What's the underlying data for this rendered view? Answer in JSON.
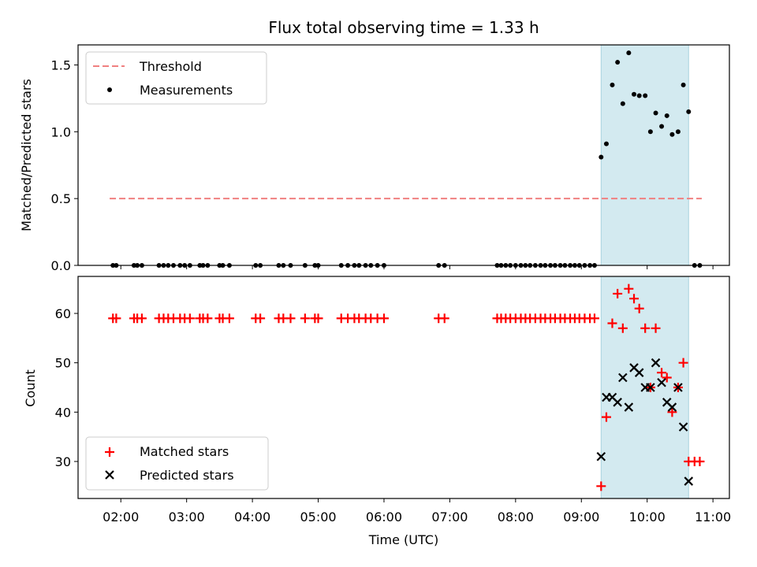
{
  "chart_data": [
    {
      "type": "scatter",
      "title": "Flux total observing time = 1.33 h",
      "ylabel": "Matched/Predicted stars",
      "xlabel": "",
      "xlim_hours": [
        1.35,
        11.25
      ],
      "ylim": [
        0,
        1.65
      ],
      "yticks": [
        0.0,
        0.5,
        1.0,
        1.5
      ],
      "ytick_labels": [
        "0.0",
        "0.5",
        "1.0",
        "1.5"
      ],
      "shaded_region_hours": [
        9.3,
        10.63
      ],
      "legend": {
        "position": "top-left",
        "entries": [
          "Threshold",
          "Measurements"
        ]
      },
      "threshold": {
        "name": "Threshold",
        "value": 0.5,
        "x_range_hours": [
          1.83,
          10.83
        ],
        "color": "#f08080"
      },
      "measurements": {
        "name": "Measurements",
        "color": "#000000",
        "x_hours": [
          1.88,
          1.93,
          2.2,
          2.25,
          2.32,
          2.58,
          2.65,
          2.72,
          2.8,
          2.9,
          2.97,
          3.05,
          3.2,
          3.25,
          3.32,
          3.5,
          3.55,
          3.65,
          4.05,
          4.12,
          4.4,
          4.47,
          4.58,
          4.8,
          4.95,
          5.0,
          5.35,
          5.45,
          5.55,
          5.62,
          5.72,
          5.8,
          5.9,
          6.0,
          6.83,
          6.92,
          7.72,
          7.78,
          7.85,
          7.92,
          8.0,
          8.08,
          8.15,
          8.22,
          8.3,
          8.38,
          8.45,
          8.53,
          8.6,
          8.68,
          8.75,
          8.83,
          8.9,
          8.97,
          9.05,
          9.13,
          9.2,
          9.3,
          9.38,
          9.47,
          9.55,
          9.63,
          9.72,
          9.8,
          9.88,
          9.97,
          10.05,
          10.13,
          10.22,
          10.3,
          10.38,
          10.47,
          10.55,
          10.63,
          10.72,
          10.8
        ],
        "y": [
          0,
          0,
          0,
          0,
          0,
          0,
          0,
          0,
          0,
          0,
          0,
          0,
          0,
          0,
          0,
          0,
          0,
          0,
          0,
          0,
          0,
          0,
          0,
          0,
          0,
          0,
          0,
          0,
          0,
          0,
          0,
          0,
          0,
          0,
          0,
          0,
          0,
          0,
          0,
          0,
          0,
          0,
          0,
          0,
          0,
          0,
          0,
          0,
          0,
          0,
          0,
          0,
          0,
          0,
          0,
          0,
          0,
          0.81,
          0.91,
          1.35,
          1.52,
          1.21,
          1.59,
          1.28,
          1.27,
          1.27,
          1.0,
          1.14,
          1.04,
          1.12,
          0.98,
          1.0,
          1.35,
          1.15,
          0,
          0
        ]
      }
    },
    {
      "type": "scatter",
      "title": "",
      "ylabel": "Count",
      "xlabel": "Time (UTC)",
      "xlim_hours": [
        1.35,
        11.25
      ],
      "ylim": [
        22.5,
        67.5
      ],
      "yticks": [
        30,
        40,
        50,
        60
      ],
      "ytick_labels": [
        "30",
        "40",
        "50",
        "60"
      ],
      "xticks_hours": [
        2,
        3,
        4,
        5,
        6,
        7,
        8,
        9,
        10,
        11
      ],
      "xtick_labels": [
        "02:00",
        "03:00",
        "04:00",
        "05:00",
        "06:00",
        "07:00",
        "08:00",
        "09:00",
        "10:00",
        "11:00"
      ],
      "shaded_region_hours": [
        9.3,
        10.63
      ],
      "legend": {
        "position": "bottom-left",
        "entries": [
          "Matched stars",
          "Predicted stars"
        ]
      },
      "series": [
        {
          "name": "Matched stars",
          "marker": "+",
          "color": "#ff0000",
          "x_hours": [
            1.88,
            1.93,
            2.2,
            2.25,
            2.32,
            2.58,
            2.65,
            2.72,
            2.8,
            2.9,
            2.97,
            3.05,
            3.2,
            3.25,
            3.32,
            3.5,
            3.55,
            3.65,
            4.05,
            4.12,
            4.4,
            4.47,
            4.58,
            4.8,
            4.95,
            5.0,
            5.35,
            5.45,
            5.55,
            5.62,
            5.72,
            5.8,
            5.9,
            6.0,
            6.83,
            6.92,
            7.72,
            7.78,
            7.85,
            7.92,
            8.0,
            8.08,
            8.15,
            8.22,
            8.3,
            8.38,
            8.45,
            8.53,
            8.6,
            8.68,
            8.75,
            8.83,
            8.9,
            8.97,
            9.05,
            9.13,
            9.2,
            9.3,
            9.38,
            9.47,
            9.55,
            9.63,
            9.72,
            9.8,
            9.88,
            9.97,
            10.05,
            10.13,
            10.22,
            10.3,
            10.38,
            10.47,
            10.55,
            10.63,
            10.72,
            10.8
          ],
          "y": [
            59,
            59,
            59,
            59,
            59,
            59,
            59,
            59,
            59,
            59,
            59,
            59,
            59,
            59,
            59,
            59,
            59,
            59,
            59,
            59,
            59,
            59,
            59,
            59,
            59,
            59,
            59,
            59,
            59,
            59,
            59,
            59,
            59,
            59,
            59,
            59,
            59,
            59,
            59,
            59,
            59,
            59,
            59,
            59,
            59,
            59,
            59,
            59,
            59,
            59,
            59,
            59,
            59,
            59,
            59,
            59,
            59,
            25,
            39,
            58,
            64,
            57,
            65,
            63,
            61,
            57,
            45,
            57,
            48,
            47,
            40,
            45,
            50,
            30,
            30,
            30
          ]
        },
        {
          "name": "Predicted stars",
          "marker": "x",
          "color": "#000000",
          "x_hours": [
            9.3,
            9.38,
            9.47,
            9.55,
            9.63,
            9.72,
            9.8,
            9.88,
            9.97,
            10.05,
            10.13,
            10.22,
            10.3,
            10.38,
            10.47,
            10.55,
            10.63
          ],
          "y": [
            31,
            43,
            43,
            42,
            47,
            41,
            49,
            48,
            45,
            45,
            50,
            46,
            42,
            41,
            45,
            37,
            26
          ]
        }
      ]
    }
  ]
}
